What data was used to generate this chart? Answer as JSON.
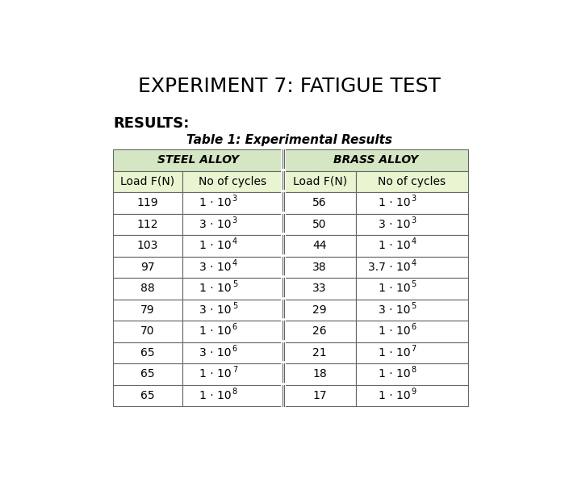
{
  "title": "EXPERIMENT 7: FATIGUE TEST",
  "results_label": "RESULTS:",
  "table_title": "Table 1: Experimental Results",
  "steel_header": "STEEL ALLOY",
  "brass_header": "BRASS ALLOY",
  "col_headers": [
    "Load F(N)",
    "No of cycles",
    "Load F(N)",
    "No of cycles"
  ],
  "steel_loads": [
    "119",
    "112",
    "103",
    "97",
    "88",
    "79",
    "70",
    "65",
    "65",
    "65"
  ],
  "steel_cycles_coeff": [
    "1",
    "3",
    "1",
    "3",
    "1",
    "3",
    "1",
    "3",
    "1",
    "1"
  ],
  "steel_cycles_exp": [
    "3",
    "3",
    "4",
    "4",
    "5",
    "5",
    "6",
    "6",
    "7",
    "8"
  ],
  "brass_loads": [
    "56",
    "50",
    "44",
    "38",
    "33",
    "29",
    "26",
    "21",
    "18",
    "17"
  ],
  "brass_cycles_coeff": [
    "1",
    "3",
    "1",
    "3.7",
    "1",
    "3",
    "1",
    "1",
    "1",
    "1"
  ],
  "brass_cycles_exp": [
    "3",
    "3",
    "4",
    "4",
    "5",
    "5",
    "6",
    "7",
    "8",
    "9"
  ],
  "header_bg": "#d4e6c3",
  "col_header_bg": "#e8f5d0",
  "row_bg": "#ffffff",
  "border_color": "#666666",
  "bg_color": "#ffffff",
  "title_fontsize": 18,
  "table_title_fontsize": 11,
  "results_fontsize": 13,
  "header_fontsize": 10,
  "cell_fontsize": 10,
  "col_header_fontsize": 10
}
